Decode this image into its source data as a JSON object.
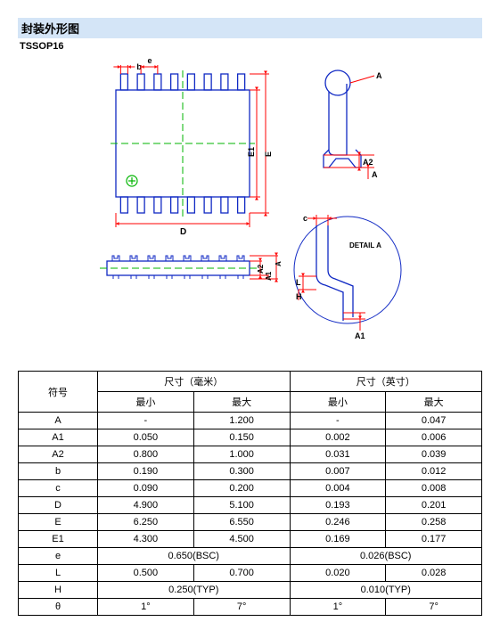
{
  "header": "封装外形图",
  "package_name": "TSSOP16",
  "diagram": {
    "stroke_blue": "#1029c4",
    "stroke_red": "#ff0000",
    "stroke_green": "#00b400",
    "stroke_width": 1.3,
    "top_view": {
      "pin_count": 8,
      "labels": {
        "b": "b",
        "e": "e",
        "D": "D",
        "E": "E",
        "E1": "E1"
      }
    },
    "side_view": {
      "labels": {
        "A": "A",
        "A1": "A1",
        "A2": "A2"
      }
    },
    "end_view": {
      "labels": {
        "A": "A",
        "A2": "A2",
        "A_top": "A"
      }
    },
    "detail": {
      "label": "DETAIL A",
      "dims": {
        "c": "c",
        "L": "L",
        "H": "H",
        "A1": "A1"
      }
    }
  },
  "table": {
    "col_symbol": "符号",
    "col_mm": "尺寸（毫米）",
    "col_in": "尺寸（英寸）",
    "col_min": "最小",
    "col_max": "最大",
    "rows": [
      {
        "sym": "A",
        "mm_min": "-",
        "mm_max": "1.200",
        "in_min": "-",
        "in_max": "0.047"
      },
      {
        "sym": "A1",
        "mm_min": "0.050",
        "mm_max": "0.150",
        "in_min": "0.002",
        "in_max": "0.006"
      },
      {
        "sym": "A2",
        "mm_min": "0.800",
        "mm_max": "1.000",
        "in_min": "0.031",
        "in_max": "0.039"
      },
      {
        "sym": "b",
        "mm_min": "0.190",
        "mm_max": "0.300",
        "in_min": "0.007",
        "in_max": "0.012"
      },
      {
        "sym": "c",
        "mm_min": "0.090",
        "mm_max": "0.200",
        "in_min": "0.004",
        "in_max": "0.008"
      },
      {
        "sym": "D",
        "mm_min": "4.900",
        "mm_max": "5.100",
        "in_min": "0.193",
        "in_max": "0.201"
      },
      {
        "sym": "E",
        "mm_min": "6.250",
        "mm_max": "6.550",
        "in_min": "0.246",
        "in_max": "0.258"
      },
      {
        "sym": "E1",
        "mm_min": "4.300",
        "mm_max": "4.500",
        "in_min": "0.169",
        "in_max": "0.177"
      },
      {
        "sym": "e",
        "mm_span": "0.650(BSC)",
        "in_span": "0.026(BSC)"
      },
      {
        "sym": "L",
        "mm_min": "0.500",
        "mm_max": "0.700",
        "in_min": "0.020",
        "in_max": "0.028"
      },
      {
        "sym": "H",
        "mm_span": "0.250(TYP)",
        "in_span": "0.010(TYP)"
      },
      {
        "sym": "θ",
        "mm_min": "1°",
        "mm_max": "7°",
        "in_min": "1°",
        "in_max": "7°"
      }
    ]
  }
}
